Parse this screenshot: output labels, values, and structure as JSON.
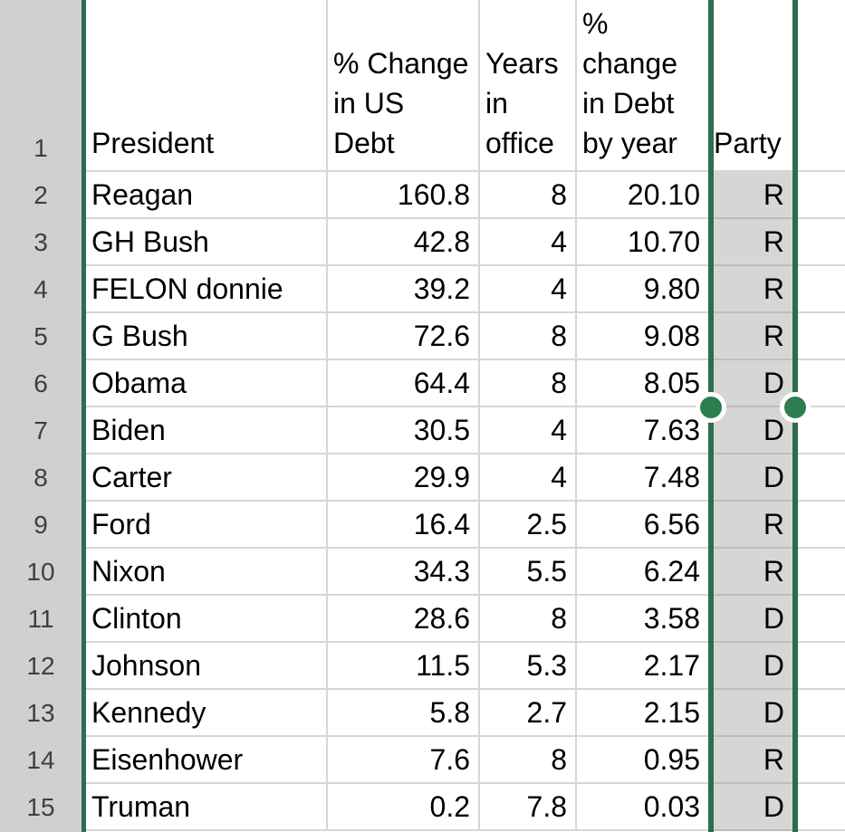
{
  "sheet": {
    "columns": [
      {
        "key": "president",
        "label": "President"
      },
      {
        "key": "pct_change_us_debt",
        "label": "% Change\nin US\nDebt"
      },
      {
        "key": "years_in_office",
        "label": "Years\nin\noffice"
      },
      {
        "key": "pct_change_debt_by_year",
        "label": "%\nchange\nin Debt\nby year"
      },
      {
        "key": "party",
        "label": "Party"
      }
    ],
    "row_numbers": [
      "1",
      "2",
      "3",
      "4",
      "5",
      "6",
      "7",
      "8",
      "9",
      "10",
      "11",
      "12",
      "13",
      "14",
      "15"
    ],
    "rows": [
      {
        "n": "2",
        "president": "Reagan",
        "pct_change_us_debt": "160.8",
        "years_in_office": "8",
        "pct_change_debt_by_year": "20.10",
        "party": "R"
      },
      {
        "n": "3",
        "president": "GH Bush",
        "pct_change_us_debt": "42.8",
        "years_in_office": "4",
        "pct_change_debt_by_year": "10.70",
        "party": "R"
      },
      {
        "n": "4",
        "president": "FELON donnie",
        "pct_change_us_debt": "39.2",
        "years_in_office": "4",
        "pct_change_debt_by_year": "9.80",
        "party": "R"
      },
      {
        "n": "5",
        "president": "G Bush",
        "pct_change_us_debt": "72.6",
        "years_in_office": "8",
        "pct_change_debt_by_year": "9.08",
        "party": "R"
      },
      {
        "n": "6",
        "president": "Obama",
        "pct_change_us_debt": "64.4",
        "years_in_office": "8",
        "pct_change_debt_by_year": "8.05",
        "party": "D"
      },
      {
        "n": "7",
        "president": "Biden",
        "pct_change_us_debt": "30.5",
        "years_in_office": "4",
        "pct_change_debt_by_year": "7.63",
        "party": "D"
      },
      {
        "n": "8",
        "president": "Carter",
        "pct_change_us_debt": "29.9",
        "years_in_office": "4",
        "pct_change_debt_by_year": "7.48",
        "party": "D"
      },
      {
        "n": "9",
        "president": "Ford",
        "pct_change_us_debt": "16.4",
        "years_in_office": "2.5",
        "pct_change_debt_by_year": "6.56",
        "party": "R"
      },
      {
        "n": "10",
        "president": "Nixon",
        "pct_change_us_debt": "34.3",
        "years_in_office": "5.5",
        "pct_change_debt_by_year": "6.24",
        "party": "R"
      },
      {
        "n": "11",
        "president": "Clinton",
        "pct_change_us_debt": "28.6",
        "years_in_office": "8",
        "pct_change_debt_by_year": "3.58",
        "party": "D"
      },
      {
        "n": "12",
        "president": "Johnson",
        "pct_change_us_debt": "11.5",
        "years_in_office": "5.3",
        "pct_change_debt_by_year": "2.17",
        "party": "D"
      },
      {
        "n": "13",
        "president": "Kennedy",
        "pct_change_us_debt": "5.8",
        "years_in_office": "2.7",
        "pct_change_debt_by_year": "2.15",
        "party": "D"
      },
      {
        "n": "14",
        "president": "Eisenhower",
        "pct_change_us_debt": "7.6",
        "years_in_office": "8",
        "pct_change_debt_by_year": "0.95",
        "party": "R"
      },
      {
        "n": "15",
        "president": "Truman",
        "pct_change_us_debt": "0.2",
        "years_in_office": "7.8",
        "pct_change_debt_by_year": "0.03",
        "party": "D"
      }
    ],
    "selection": {
      "selected_column_header": "Party",
      "selection_green": "#2F6B4E",
      "handle_green": "#2E7D4F",
      "selection_fill": "#D7D6D6",
      "row_header_bg": "#D1D0D0",
      "gridline": "#D6D6D6"
    }
  }
}
